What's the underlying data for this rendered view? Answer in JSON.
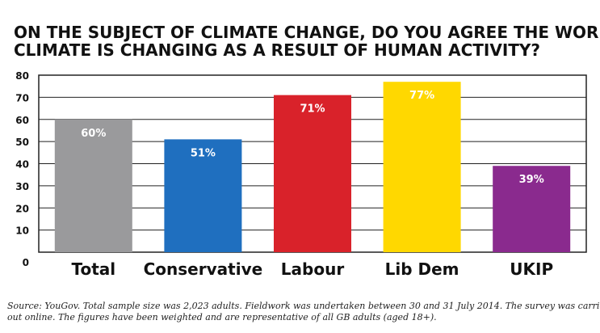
{
  "chart_data": {
    "type": "bar",
    "title_lines": [
      "ON THE SUBJECT OF CLIMATE CHANGE, DO YOU AGREE THE WORLD’S",
      "CLIMATE IS CHANGING AS A RESULT OF HUMAN ACTIVITY?"
    ],
    "categories": [
      "Total",
      "Conservative",
      "Labour",
      "Lib Dem",
      "UKIP"
    ],
    "values": [
      60,
      51,
      71,
      77,
      39
    ],
    "data_labels": [
      "60%",
      "51%",
      "71%",
      "77%",
      "39%"
    ],
    "colors": [
      "#9a9a9c",
      "#1f6fbf",
      "#d9222a",
      "#ffd800",
      "#8a2a8e"
    ],
    "label_colors": [
      "#ffffff",
      "#ffffff",
      "#ffffff",
      "#ffffff",
      "#ffffff"
    ],
    "ylim": [
      0,
      80
    ],
    "yticks": [
      0,
      10,
      20,
      30,
      40,
      50,
      60,
      70,
      80
    ],
    "grid": true,
    "xlabel": "",
    "ylabel": "",
    "source_lines": [
      "Source: YouGov. Total sample size was 2,023 adults.  Fieldwork was undertaken between 30 and 31 July 2014.  The survey was carried",
      "out online. The figures have been weighted and are representative of all GB adults (aged 18+)."
    ]
  }
}
